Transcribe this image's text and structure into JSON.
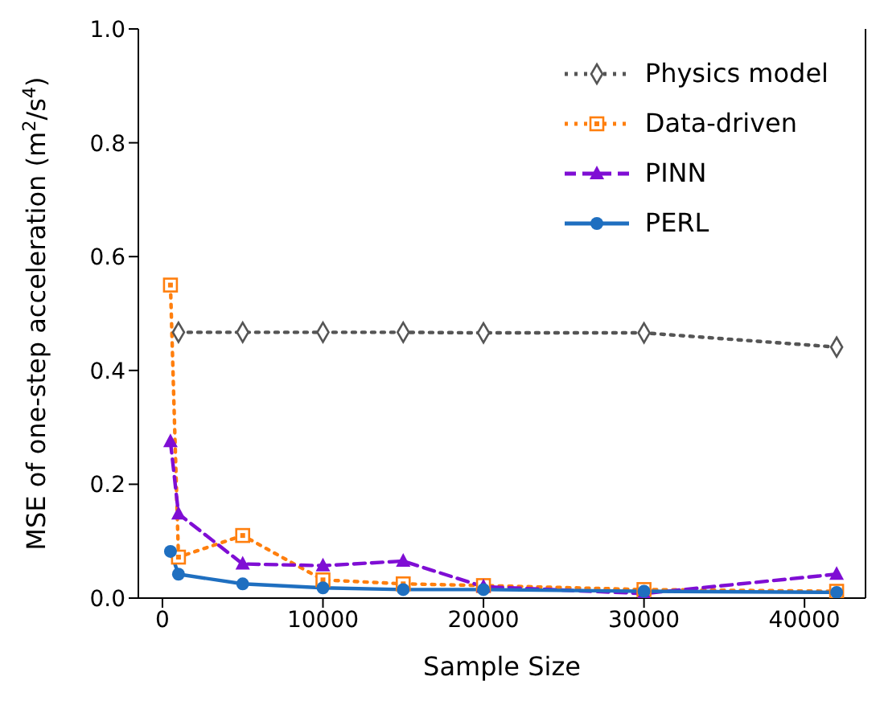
{
  "chart_data": {
    "type": "line",
    "xlabel": "Sample Size",
    "ylabel": "MSE of one-step acceleration (m$^{2}$/s$^{4}$)",
    "xlim": [
      -1500,
      43800
    ],
    "xticks": [
      0,
      10000,
      20000,
      30000,
      40000
    ],
    "ylim": [
      0,
      1.0
    ],
    "yticks": [
      {
        "value": 0,
        "label": "0.0"
      },
      {
        "value": 0.2,
        "label": "0.2"
      },
      {
        "value": 0.4,
        "label": "0.4"
      },
      {
        "value": 0.6,
        "label": "0.6"
      },
      {
        "value": 0.8,
        "label": "0.8"
      },
      {
        "value": 1.0,
        "label": "1.0"
      }
    ],
    "legend": "top right",
    "series": [
      {
        "name": "Physics model",
        "color": "#555555",
        "marker": "diamond",
        "line_style": "dotted",
        "x": [
          1000,
          5000,
          10000,
          15000,
          20000,
          30000,
          42000
        ],
        "values": [
          0.467,
          0.467,
          0.467,
          0.467,
          0.466,
          0.466,
          0.441
        ]
      },
      {
        "name": "Data-driven",
        "color": "#ff7f0e",
        "marker": "square",
        "line_style": "dotted",
        "x": [
          500,
          1000,
          5000,
          10000,
          15000,
          20000,
          30000,
          42000
        ],
        "values": [
          0.55,
          0.072,
          0.11,
          0.032,
          0.025,
          0.022,
          0.015,
          0.012
        ]
      },
      {
        "name": "PINN",
        "color": "#7f0ed4",
        "marker": "triangle",
        "line_style": "dashed",
        "x": [
          500,
          1000,
          5000,
          10000,
          15000,
          20000,
          30000,
          42000
        ],
        "values": [
          0.275,
          0.148,
          0.06,
          0.057,
          0.065,
          0.02,
          0.008,
          0.042
        ]
      },
      {
        "name": "PERL",
        "color": "#1f6fc0",
        "marker": "circle",
        "line_style": "solid",
        "x": [
          500,
          1000,
          5000,
          10000,
          15000,
          20000,
          30000,
          42000
        ],
        "values": [
          0.082,
          0.042,
          0.025,
          0.018,
          0.015,
          0.015,
          0.012,
          0.01
        ]
      }
    ]
  }
}
